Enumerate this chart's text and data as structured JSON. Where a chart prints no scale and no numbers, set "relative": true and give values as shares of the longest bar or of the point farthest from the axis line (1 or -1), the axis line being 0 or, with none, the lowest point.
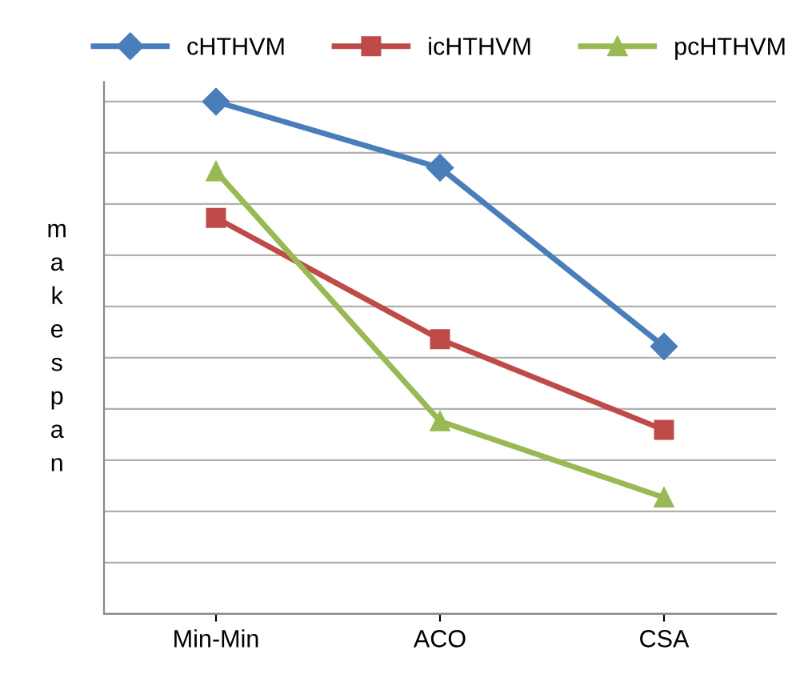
{
  "chart_data": {
    "type": "line",
    "relative": true,
    "ylabel": "makespan",
    "categories": [
      "Min-Min",
      "ACO",
      "CSA"
    ],
    "series": [
      {
        "name": "cHTHVM",
        "color": "#4a7ebb",
        "marker": "diamond",
        "values": [
          1,
          0.871,
          0.522
        ]
      },
      {
        "name": "icHTHVM",
        "color": "#be4b48",
        "marker": "square",
        "values": [
          0.773,
          0.536,
          0.359
        ]
      },
      {
        "name": "pcHTHVM",
        "color": "#98b954",
        "marker": "triangle",
        "values": [
          0.864,
          0.376,
          0.227
        ]
      }
    ],
    "grid": "y",
    "legend": "top",
    "line_style": "solid"
  }
}
